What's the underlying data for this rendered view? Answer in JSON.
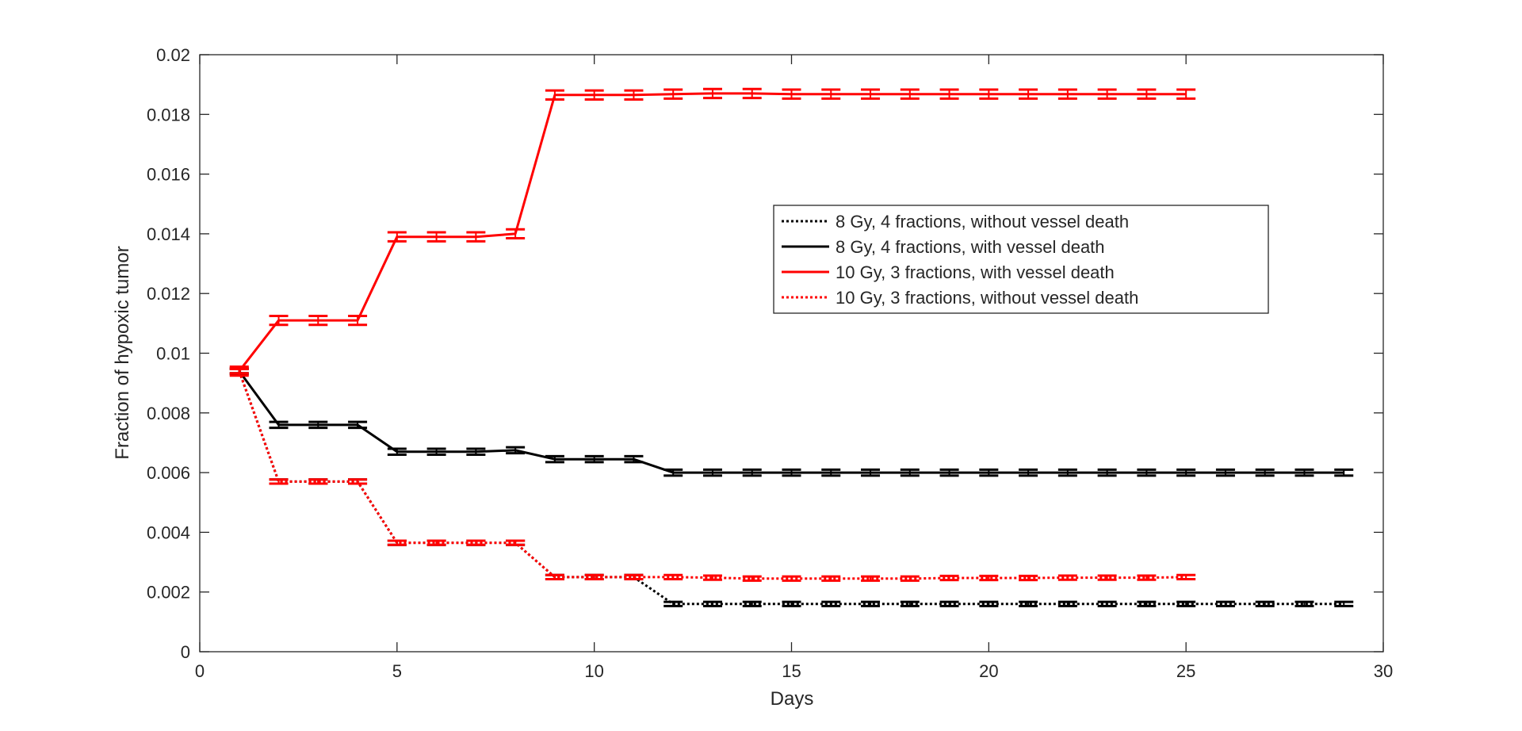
{
  "chart_data": {
    "type": "line",
    "title": "",
    "xlabel": "Days",
    "ylabel": "Fraction of hypoxic tumor",
    "xlim": [
      0,
      30
    ],
    "ylim": [
      0,
      0.02
    ],
    "xticks": [
      "0",
      "5",
      "10",
      "15",
      "20",
      "25",
      "30"
    ],
    "yticks": [
      "0",
      "0.002",
      "0.004",
      "0.006",
      "0.008",
      "0.01",
      "0.012",
      "0.014",
      "0.016",
      "0.018",
      "0.02"
    ],
    "grid": false,
    "legend_position": "upper-right",
    "series": [
      {
        "name": "8 Gy, 4 fractions,  without vessel death",
        "color": "#000000",
        "style": "dotted",
        "error_bars": true,
        "x": [
          1,
          2,
          3,
          4,
          5,
          6,
          7,
          8,
          9,
          10,
          11,
          12,
          13,
          14,
          15,
          16,
          17,
          18,
          19,
          20,
          21,
          22,
          23,
          24,
          25,
          26,
          27,
          28,
          29
        ],
        "y": [
          0.0094,
          0.0057,
          0.0057,
          0.0057,
          0.00365,
          0.00365,
          0.00365,
          0.00365,
          0.0025,
          0.0025,
          0.0025,
          0.0016,
          0.0016,
          0.0016,
          0.0016,
          0.0016,
          0.0016,
          0.0016,
          0.0016,
          0.0016,
          0.0016,
          0.0016,
          0.0016,
          0.0016,
          0.0016,
          0.0016,
          0.0016,
          0.0016,
          0.0016
        ],
        "error": 7e-05
      },
      {
        "name": "8 Gy, 4 fractions,  with vessel death",
        "color": "#000000",
        "style": "solid",
        "error_bars": true,
        "x": [
          1,
          2,
          3,
          4,
          5,
          6,
          7,
          8,
          9,
          10,
          11,
          12,
          13,
          14,
          15,
          16,
          17,
          18,
          19,
          20,
          21,
          22,
          23,
          24,
          25,
          26,
          27,
          28,
          29
        ],
        "y": [
          0.0094,
          0.0076,
          0.0076,
          0.0076,
          0.0067,
          0.0067,
          0.0067,
          0.00675,
          0.00645,
          0.00645,
          0.00645,
          0.006,
          0.006,
          0.006,
          0.006,
          0.006,
          0.006,
          0.006,
          0.006,
          0.006,
          0.006,
          0.006,
          0.006,
          0.006,
          0.006,
          0.006,
          0.006,
          0.006,
          0.006
        ],
        "error": 0.0001
      },
      {
        "name": "10 Gy, 3 fractions,  with vessel death",
        "color": "#ff0000",
        "style": "solid",
        "error_bars": true,
        "x": [
          1,
          2,
          3,
          4,
          5,
          6,
          7,
          8,
          9,
          10,
          11,
          12,
          13,
          14,
          15,
          16,
          17,
          18,
          19,
          20,
          21,
          22,
          23,
          24,
          25
        ],
        "y": [
          0.0094,
          0.0111,
          0.0111,
          0.0111,
          0.0139,
          0.0139,
          0.0139,
          0.014,
          0.01865,
          0.01865,
          0.01865,
          0.01868,
          0.0187,
          0.0187,
          0.01868,
          0.01868,
          0.01868,
          0.01868,
          0.01868,
          0.01868,
          0.01868,
          0.01868,
          0.01868,
          0.01868,
          0.01868
        ],
        "error": 0.00015
      },
      {
        "name": "10 Gy, 3 fractions,  without vessel death",
        "color": "#ff0000",
        "style": "dotted",
        "error_bars": true,
        "x": [
          1,
          2,
          3,
          4,
          5,
          6,
          7,
          8,
          9,
          10,
          11,
          12,
          13,
          14,
          15,
          16,
          17,
          18,
          19,
          20,
          21,
          22,
          23,
          24,
          25
        ],
        "y": [
          0.0094,
          0.0057,
          0.0057,
          0.0057,
          0.00365,
          0.00365,
          0.00365,
          0.00365,
          0.0025,
          0.0025,
          0.0025,
          0.0025,
          0.00248,
          0.00245,
          0.00245,
          0.00245,
          0.00245,
          0.00245,
          0.00247,
          0.00247,
          0.00247,
          0.00248,
          0.00248,
          0.00248,
          0.0025
        ],
        "error": 7e-05
      }
    ]
  }
}
